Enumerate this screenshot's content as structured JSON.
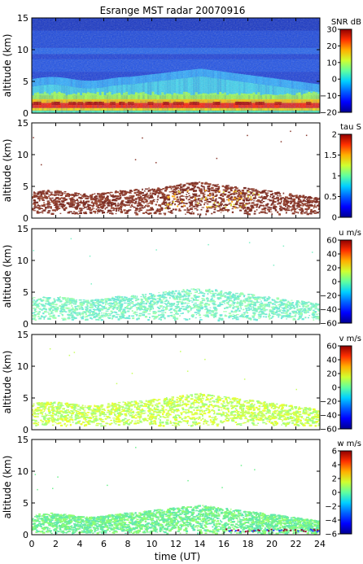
{
  "chart_data": {
    "type": "heatmap",
    "title": "Esrange MST radar 20070916",
    "xlabel": "time (UT)",
    "x_ticks": [
      0,
      2,
      4,
      6,
      8,
      10,
      12,
      14,
      16,
      18,
      20,
      22,
      24
    ],
    "xlim": [
      0,
      24
    ],
    "panels": [
      {
        "ylabel": "altitude (km)",
        "ylim": [
          0,
          15
        ],
        "y_ticks": [
          0,
          5,
          10,
          15
        ],
        "colorbar_label": "SNR dB",
        "colorbar_range": [
          -20,
          30
        ],
        "colorbar_ticks": [
          -20,
          -10,
          0,
          10,
          20,
          30
        ],
        "colorbar_tick_labels": [
          "−20",
          "−10",
          "0",
          "10",
          "20",
          "30"
        ],
        "description": "dense field; strong layer 1-2 km; stronger echoes below ~5 km"
      },
      {
        "ylabel": "altitude (km)",
        "ylim": [
          0,
          15
        ],
        "y_ticks": [
          0,
          5,
          10,
          15
        ],
        "colorbar_label": "tau S",
        "colorbar_range": [
          0,
          2
        ],
        "colorbar_ticks": [
          0,
          0.5,
          1,
          1.5,
          2
        ],
        "colorbar_tick_labels": [
          "0",
          "0.5",
          "1",
          "1.5",
          "2"
        ]
      },
      {
        "ylabel": "altitude (km)",
        "ylim": [
          0,
          15
        ],
        "y_ticks": [
          0,
          5,
          10,
          15
        ],
        "colorbar_label": "u m/s",
        "colorbar_range": [
          -60,
          60
        ],
        "colorbar_ticks": [
          -60,
          -40,
          -20,
          0,
          20,
          40,
          60
        ],
        "colorbar_tick_labels": [
          "−60",
          "−40",
          "−20",
          "0",
          "20",
          "40",
          "60"
        ]
      },
      {
        "ylabel": "altitude (km)",
        "ylim": [
          0,
          15
        ],
        "y_ticks": [
          0,
          5,
          10,
          15
        ],
        "colorbar_label": "v m/s",
        "colorbar_range": [
          -60,
          60
        ],
        "colorbar_ticks": [
          -60,
          -40,
          -20,
          0,
          20,
          40,
          60
        ],
        "colorbar_tick_labels": [
          "−60",
          "−40",
          "−20",
          "0",
          "20",
          "40",
          "60"
        ]
      },
      {
        "ylabel": "altitude (km)",
        "ylim": [
          0,
          15
        ],
        "y_ticks": [
          0,
          5,
          10,
          15
        ],
        "colorbar_label": "w m/s",
        "colorbar_range": [
          -6,
          6
        ],
        "colorbar_ticks": [
          -6,
          -4,
          -2,
          0,
          2,
          4,
          6
        ],
        "colorbar_tick_labels": [
          "−6",
          "−4",
          "−2",
          "0",
          "2",
          "4",
          "6"
        ]
      }
    ],
    "colormap": [
      "#000090",
      "#0000ff",
      "#0090ff",
      "#00ffff",
      "#90ff70",
      "#ffff00",
      "#ff9000",
      "#ff0000",
      "#900000"
    ]
  }
}
